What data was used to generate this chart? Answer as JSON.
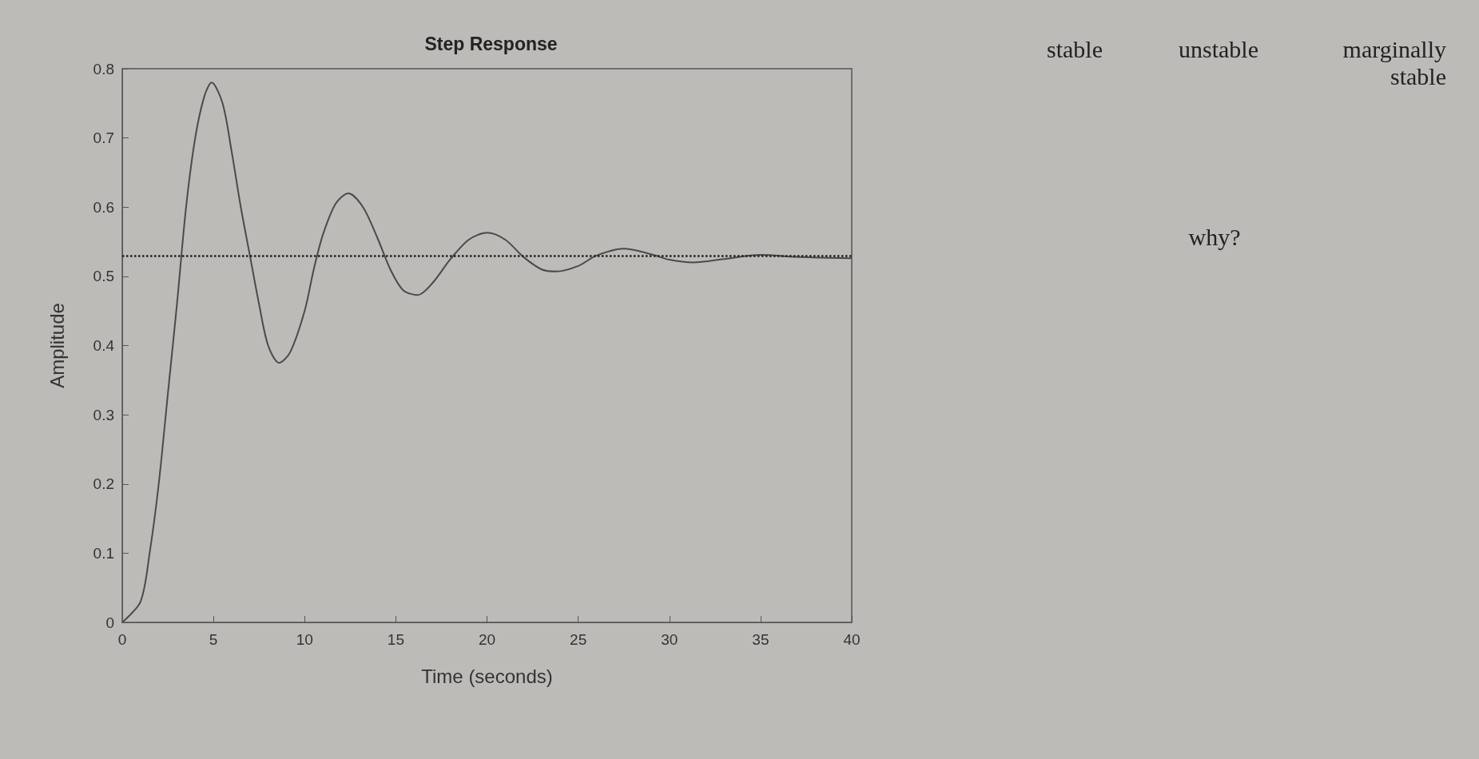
{
  "chart_data": {
    "type": "line",
    "title": "Step Response",
    "xlabel": "Time (seconds)",
    "ylabel": "Amplitude",
    "x": [
      0,
      1,
      1.5,
      2,
      2.5,
      3,
      3.5,
      4,
      4.5,
      4.9,
      5.5,
      6,
      6.5,
      7,
      7.5,
      8,
      8.6,
      9.2,
      10,
      10.5,
      11,
      11.7,
      12.4,
      13.2,
      14,
      14.7,
      15.4,
      16.2,
      17,
      18,
      19,
      20,
      21,
      22,
      23,
      23.8,
      25,
      26,
      27.5,
      29,
      30,
      31.3,
      33,
      35,
      37,
      40
    ],
    "series": [
      {
        "color": "#4a4a4a",
        "values": [
          0,
          0.03,
          0.1,
          0.2,
          0.33,
          0.46,
          0.6,
          0.7,
          0.76,
          0.78,
          0.75,
          0.68,
          0.6,
          0.53,
          0.46,
          0.4,
          0.375,
          0.39,
          0.45,
          0.51,
          0.56,
          0.605,
          0.62,
          0.6,
          0.555,
          0.51,
          0.48,
          0.473,
          0.49,
          0.525,
          0.553,
          0.563,
          0.553,
          0.528,
          0.51,
          0.507,
          0.515,
          0.53,
          0.54,
          0.532,
          0.524,
          0.52,
          0.525,
          0.531,
          0.528,
          0.526
        ]
      }
    ],
    "xlim": [
      0,
      40
    ],
    "xticks": [
      0,
      5,
      10,
      15,
      20,
      25,
      30,
      35,
      40
    ],
    "ylim": [
      0,
      0.8
    ],
    "yticks": [
      0,
      0.1,
      0.2,
      0.3,
      0.4,
      0.5,
      0.6,
      0.7,
      0.8
    ],
    "ref_lines": [
      {
        "axis": "y",
        "value": 0.527,
        "line_style": "dotted",
        "color": "#222222"
      }
    ],
    "marker": "none",
    "line_style": "solid",
    "grid": false,
    "annotations": [
      "stable",
      "unstable",
      "marginally stable",
      "why?"
    ]
  }
}
